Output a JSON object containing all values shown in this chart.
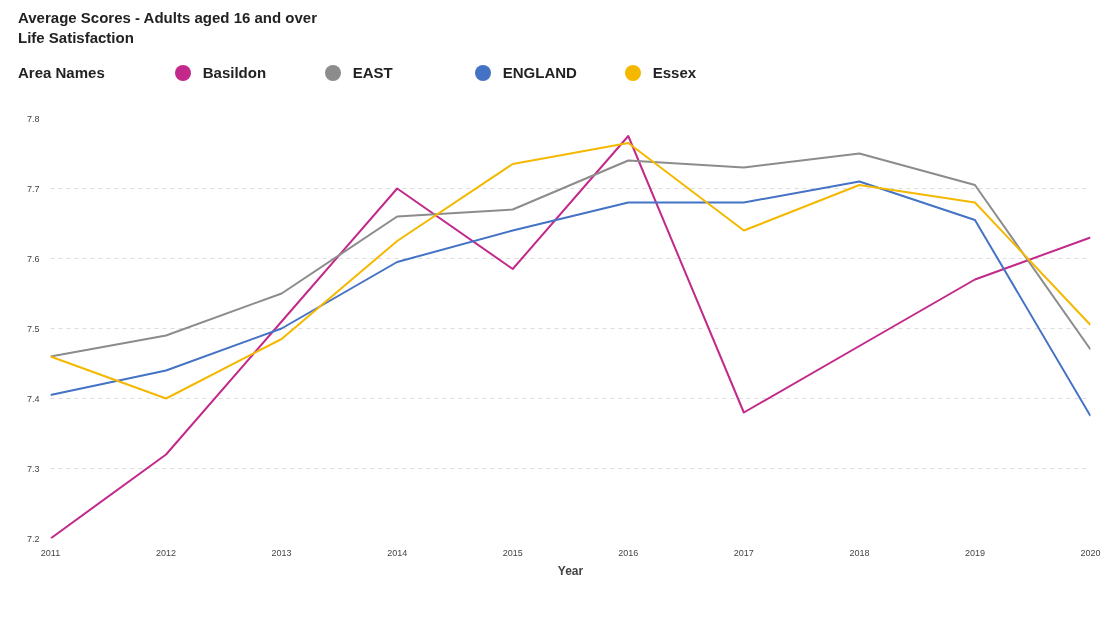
{
  "chart_data": {
    "type": "line",
    "title": "Average Scores - Adults aged 16 and over",
    "subtitle": "Life Satisfaction",
    "xlabel": "Year",
    "legend_title": "Area Names",
    "x": [
      2011,
      2012,
      2013,
      2014,
      2015,
      2016,
      2017,
      2018,
      2019,
      2020
    ],
    "series": [
      {
        "name": "Basildon",
        "color": "#c2298a",
        "values": [
          7.2,
          7.32,
          7.51,
          7.7,
          7.585,
          7.775,
          7.38,
          7.475,
          7.57,
          7.63
        ]
      },
      {
        "name": "EAST",
        "color": "#8c8c8c",
        "values": [
          7.46,
          7.49,
          7.55,
          7.66,
          7.67,
          7.74,
          7.73,
          7.75,
          7.705,
          7.47
        ]
      },
      {
        "name": "ENGLAND",
        "color": "#4472c4",
        "values": [
          7.405,
          7.44,
          7.5,
          7.595,
          7.64,
          7.68,
          7.68,
          7.71,
          7.655,
          7.375
        ]
      },
      {
        "name": "Essex",
        "color": "#f5b800",
        "values": [
          7.46,
          7.4,
          7.485,
          7.625,
          7.735,
          7.765,
          7.64,
          7.705,
          7.68,
          7.505
        ]
      }
    ],
    "xlim": [
      2011,
      2020
    ],
    "xticks": [
      2011,
      2012,
      2013,
      2014,
      2015,
      2016,
      2017,
      2018,
      2019,
      2020
    ],
    "ylim": [
      7.2,
      7.8
    ],
    "yticks": [
      7.2,
      7.3,
      7.4,
      7.5,
      7.6,
      7.7,
      7.8
    ],
    "grid": "y",
    "legend": "top left",
    "marker": "none",
    "line_style": "solid"
  }
}
